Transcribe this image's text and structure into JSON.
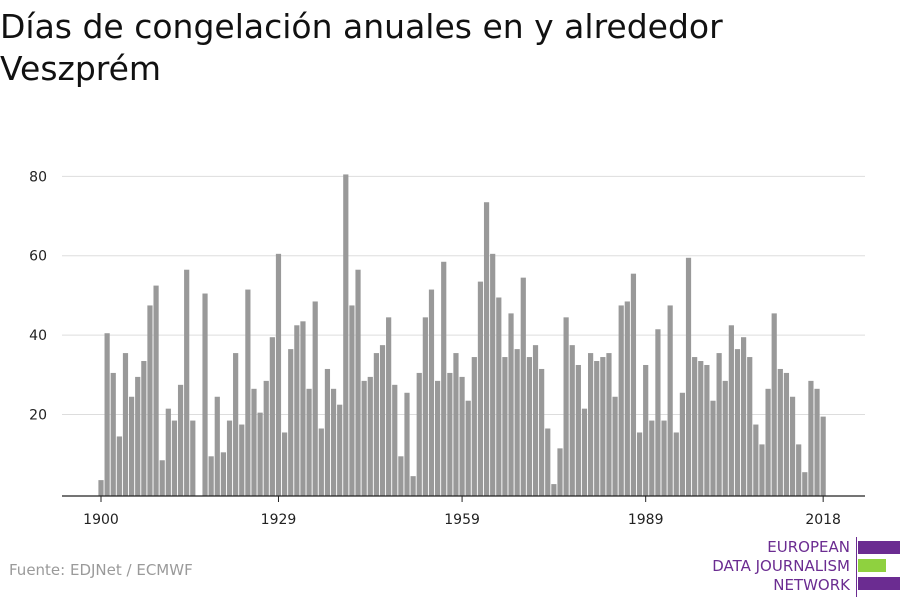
{
  "title": "Días de congelación anuales en y alrededor Veszprém",
  "source": "Fuente: EDJNet / ECMWF",
  "logo": {
    "line1": "EUROPEAN",
    "line2": "DATA JOURNALISM",
    "line3": "NETWORK",
    "colors": {
      "purple": "#6b2c91",
      "green": "#8fd13f"
    }
  },
  "chart_data": {
    "type": "bar",
    "title": "Días de congelación anuales en y alrededor Veszprém",
    "xlabel": "",
    "ylabel": "",
    "x_ticks": [
      1900,
      1929,
      1959,
      1989,
      2018
    ],
    "y_ticks": [
      20,
      40,
      60,
      80
    ],
    "ylim": [
      0,
      88
    ],
    "grid": true,
    "bar_color": "#999999",
    "x": [
      1900,
      1901,
      1902,
      1903,
      1904,
      1905,
      1906,
      1907,
      1908,
      1909,
      1910,
      1911,
      1912,
      1913,
      1914,
      1915,
      1916,
      1917,
      1918,
      1919,
      1920,
      1921,
      1922,
      1923,
      1924,
      1925,
      1926,
      1927,
      1928,
      1929,
      1930,
      1931,
      1932,
      1933,
      1934,
      1935,
      1936,
      1937,
      1938,
      1939,
      1940,
      1941,
      1942,
      1943,
      1944,
      1945,
      1946,
      1947,
      1948,
      1949,
      1950,
      1951,
      1952,
      1953,
      1954,
      1955,
      1956,
      1957,
      1958,
      1959,
      1960,
      1961,
      1962,
      1963,
      1964,
      1965,
      1966,
      1967,
      1968,
      1969,
      1970,
      1971,
      1972,
      1973,
      1974,
      1975,
      1976,
      1977,
      1978,
      1979,
      1980,
      1981,
      1982,
      1983,
      1984,
      1985,
      1986,
      1987,
      1988,
      1989,
      1990,
      1991,
      1992,
      1993,
      1994,
      1995,
      1996,
      1997,
      1998,
      1999,
      2000,
      2001,
      2002,
      2003,
      2004,
      2005,
      2006,
      2007,
      2008,
      2009,
      2010,
      2011,
      2012,
      2013,
      2014,
      2015,
      2016,
      2017,
      2018
    ],
    "values": [
      4,
      41,
      31,
      15,
      36,
      25,
      30,
      34,
      48,
      53,
      9,
      22,
      19,
      28,
      57,
      19,
      0,
      51,
      10,
      25,
      11,
      19,
      36,
      18,
      52,
      27,
      21,
      29,
      40,
      61,
      16,
      37,
      43,
      44,
      27,
      49,
      17,
      32,
      27,
      23,
      81,
      48,
      57,
      29,
      30,
      36,
      38,
      45,
      28,
      10,
      26,
      5,
      31,
      45,
      52,
      29,
      59,
      31,
      36,
      30,
      24,
      35,
      54,
      74,
      61,
      50,
      35,
      46,
      37,
      55,
      35,
      38,
      32,
      17,
      3,
      12,
      45,
      38,
      33,
      22,
      36,
      34,
      35,
      36,
      25,
      48,
      49,
      56,
      16,
      33,
      19,
      42,
      19,
      48,
      16,
      26,
      60,
      35,
      34,
      33,
      24,
      36,
      29,
      43,
      37,
      40,
      35,
      18,
      13,
      27,
      46,
      32,
      31,
      25,
      13,
      6,
      29,
      27,
      20
    ]
  }
}
